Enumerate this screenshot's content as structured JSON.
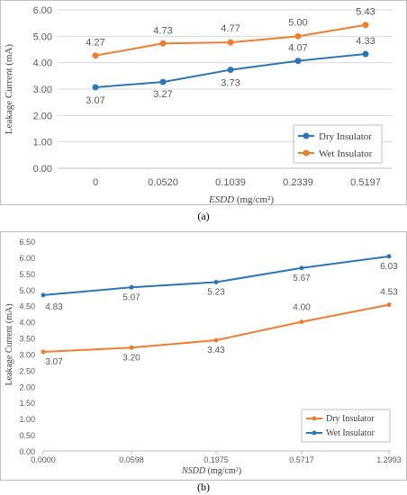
{
  "chart_data": [
    {
      "type": "line",
      "panel_label": "(a)",
      "ylabel": "Leakage Current (mA)",
      "xlabel_italic": "ESDD",
      "xlabel_unit": " (mg/cm²)",
      "categories": [
        "0",
        "0.0520",
        "0.1039",
        "0.2339",
        "0.5197"
      ],
      "ylim": [
        0,
        6
      ],
      "yticks": [
        "0.00",
        "1.00",
        "2.00",
        "3.00",
        "4.00",
        "5.00",
        "6.00"
      ],
      "grid": true,
      "legend_position": "bottom-right",
      "series": [
        {
          "name": "Dry Insulator",
          "color": "#2e75b6",
          "values": [
            3.07,
            3.27,
            3.73,
            4.07,
            4.33
          ],
          "labels": [
            "3.07",
            "3.27",
            "3.73",
            "4.07",
            "4.33"
          ]
        },
        {
          "name": "Wet Insulator",
          "color": "#ed7d31",
          "values": [
            4.27,
            4.73,
            4.77,
            5.0,
            5.43
          ],
          "labels": [
            "4.27",
            "4.73",
            "4.77",
            "5.00",
            "5.43"
          ]
        }
      ]
    },
    {
      "type": "line",
      "panel_label": "(b)",
      "ylabel": "Leakage Current (mA)",
      "xlabel_italic": "NSDD",
      "xlabel_unit": " (mg/cm²)",
      "categories": [
        "0.0000",
        "0.0598",
        "0.1975",
        "0.5717",
        "1.2993"
      ],
      "ylim": [
        0,
        6.5
      ],
      "yticks": [
        "0.00",
        "0.50",
        "1.00",
        "1.50",
        "2.00",
        "2.50",
        "3.00",
        "3.50",
        "4.00",
        "4.50",
        "5.00",
        "5.50",
        "6.00",
        "6.50"
      ],
      "grid": false,
      "legend_position": "bottom-right",
      "series": [
        {
          "name": "Dry Insulator",
          "color": "#ed7d31",
          "values": [
            3.07,
            3.2,
            3.43,
            4.0,
            4.53
          ],
          "labels": [
            "3.07",
            "3.20",
            "3.43",
            "4.00",
            "4.53"
          ]
        },
        {
          "name": "Wet Insulator",
          "color": "#2e75b6",
          "values": [
            4.83,
            5.07,
            5.23,
            5.67,
            6.03
          ],
          "labels": [
            "4.83",
            "5.07",
            "5.23",
            "5.67",
            "6.03"
          ]
        }
      ]
    }
  ]
}
